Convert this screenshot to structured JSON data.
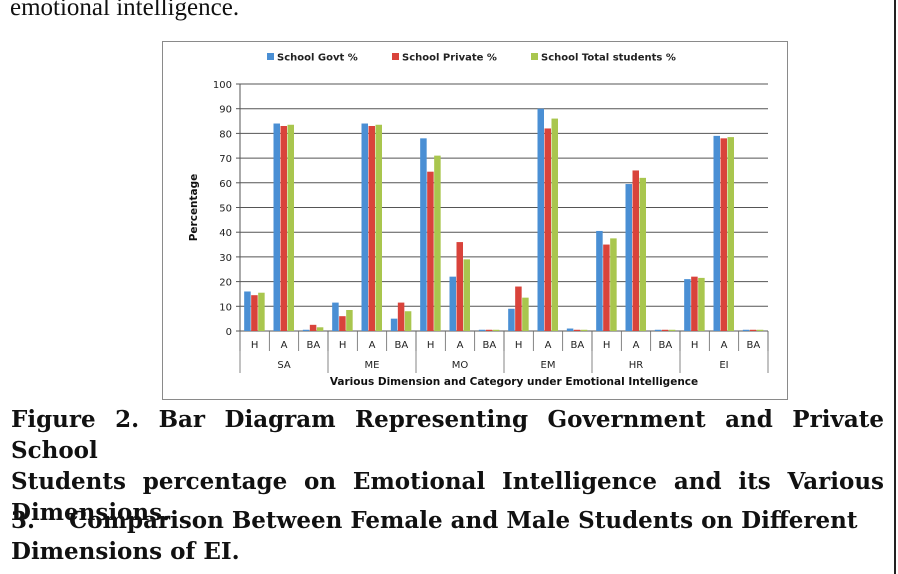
{
  "top_text": "emotional intelligence.",
  "figure_caption": {
    "line1": "Figure 2. Bar Diagram Representing Government and Private School",
    "line2": "Students percentage on Emotional Intelligence and its Various",
    "line3": "Dimensions."
  },
  "section_heading": {
    "number": "3.",
    "line1": "Comparison Between Female and Male Students on Different",
    "line2": "Dimensions of EI."
  },
  "colors": {
    "govt": "#4a8fd4",
    "private": "#d9433b",
    "total": "#a9c64e",
    "grid": "#555555"
  },
  "chart_data": {
    "type": "bar",
    "ylabel": "Percentage",
    "xlabel": "Various Dimension and Category under Emotional Intelligence",
    "ylim": [
      0,
      100
    ],
    "yticks": [
      0,
      10,
      20,
      30,
      40,
      50,
      60,
      70,
      80,
      90,
      100
    ],
    "grid": true,
    "legend_position": "top",
    "groups": [
      "SA",
      "ME",
      "MO",
      "EM",
      "HR",
      "EI"
    ],
    "subcategories": [
      "H",
      "A",
      "BA"
    ],
    "categories": [
      "H",
      "A",
      "BA",
      "H",
      "A",
      "BA",
      "H",
      "A",
      "BA",
      "H",
      "A",
      "BA",
      "H",
      "A",
      "BA",
      "H",
      "A",
      "BA"
    ],
    "series": [
      {
        "name": "School Govt %",
        "color": "#4a8fd4",
        "values": [
          16,
          84,
          0.5,
          11.5,
          84,
          5,
          78,
          22,
          0.5,
          9,
          90,
          1,
          40.5,
          59.5,
          0.5,
          21,
          79,
          0.5
        ]
      },
      {
        "name": "School Private %",
        "color": "#d9433b",
        "values": [
          14.5,
          83,
          2.5,
          6,
          83,
          11.5,
          64.5,
          36,
          0.5,
          18,
          82,
          0.5,
          35,
          65,
          0.5,
          22,
          78,
          0.5
        ]
      },
      {
        "name": "School Total students %",
        "color": "#a9c64e",
        "values": [
          15.5,
          83.5,
          1.5,
          8.5,
          83.5,
          8,
          71,
          29,
          0.5,
          13.5,
          86,
          0.5,
          37.5,
          62,
          0.5,
          21.5,
          78.5,
          0.5
        ]
      }
    ]
  }
}
